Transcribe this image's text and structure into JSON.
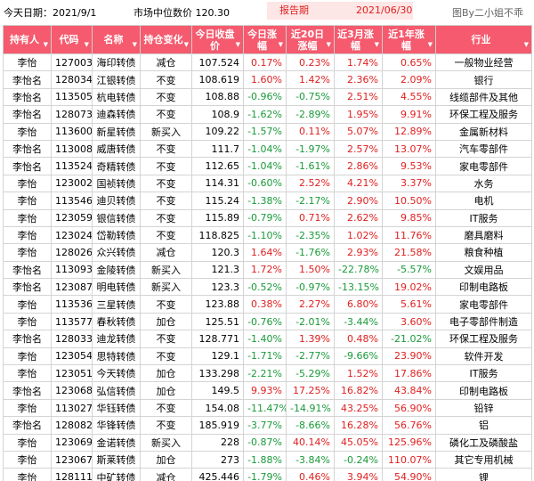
{
  "header": {
    "date_label": "今天日期：2021/9/1",
    "price_label": "市场中位数价  120.30",
    "period_label": "报告期",
    "period_value": "2021/06/30",
    "credit": "图By二小姐不乖"
  },
  "colors": {
    "header_bg": "#f55a6e",
    "up": "#e02020",
    "down": "#1a9a3a",
    "period_bg": "#fde6e6"
  },
  "columns": [
    "持有人",
    "代码",
    "名称",
    "持仓变化",
    "今日收盘价",
    "今日涨幅",
    "近20日涨幅",
    "近3月涨幅",
    "近1年涨幅",
    "行业"
  ],
  "rows": [
    [
      "李怡",
      "127003",
      "海印转债",
      "减仓",
      "107.524",
      "0.17%",
      "0.23%",
      "1.74%",
      "0.65%",
      "一般物业经营"
    ],
    [
      "李怡名",
      "128034",
      "江银转债",
      "不变",
      "108.619",
      "1.60%",
      "1.42%",
      "2.36%",
      "2.09%",
      "银行"
    ],
    [
      "李怡名",
      "113505",
      "杭电转债",
      "不变",
      "108.88",
      "-0.96%",
      "-0.75%",
      "2.51%",
      "4.55%",
      "线缆部件及其他"
    ],
    [
      "李怡名",
      "128073",
      "迪森转债",
      "不变",
      "108.9",
      "-1.62%",
      "-2.89%",
      "1.95%",
      "9.91%",
      "环保工程及服务"
    ],
    [
      "李怡",
      "113600",
      "新星转债",
      "新买入",
      "109.22",
      "-1.57%",
      "0.11%",
      "5.07%",
      "12.89%",
      "金属新材料"
    ],
    [
      "李怡名",
      "113008",
      "威唐转债",
      "不变",
      "111.7",
      "-1.04%",
      "-1.97%",
      "2.57%",
      "13.07%",
      "汽车零部件"
    ],
    [
      "李怡名",
      "113524",
      "奇精转债",
      "不变",
      "112.65",
      "-1.04%",
      "-1.61%",
      "2.86%",
      "9.53%",
      "家电零部件"
    ],
    [
      "李怡",
      "123002",
      "国祯转债",
      "不变",
      "114.31",
      "-0.60%",
      "2.52%",
      "4.21%",
      "3.37%",
      "水务"
    ],
    [
      "李怡",
      "113546",
      "迪贝转债",
      "不变",
      "115.24",
      "-1.38%",
      "-2.17%",
      "2.90%",
      "10.50%",
      "电机"
    ],
    [
      "李怡",
      "123059",
      "银信转债",
      "不变",
      "115.89",
      "-0.79%",
      "0.71%",
      "2.62%",
      "9.85%",
      "IT服务"
    ],
    [
      "李怡",
      "123024",
      "岱勒转债",
      "不变",
      "118.825",
      "-1.10%",
      "-2.35%",
      "1.02%",
      "11.76%",
      "磨具磨料"
    ],
    [
      "李怡",
      "128026",
      "众兴转债",
      "减仓",
      "120.3",
      "1.64%",
      "-1.76%",
      "2.93%",
      "21.58%",
      "粮食种植"
    ],
    [
      "李怡名",
      "113093",
      "金陵转债",
      "新买入",
      "121.3",
      "1.72%",
      "1.50%",
      "-22.78%",
      "-5.57%",
      "文娱用品"
    ],
    [
      "李怡名",
      "123087",
      "明电转债",
      "新买入",
      "123.3",
      "-0.52%",
      "-0.97%",
      "-13.15%",
      "19.02%",
      "印制电路板"
    ],
    [
      "李怡",
      "113536",
      "三星转债",
      "不变",
      "123.88",
      "0.38%",
      "2.27%",
      "6.80%",
      "5.61%",
      "家电零部件"
    ],
    [
      "李怡",
      "113577",
      "春秋转债",
      "加仓",
      "125.51",
      "-0.76%",
      "-2.01%",
      "-3.44%",
      "3.60%",
      "电子零部件制造"
    ],
    [
      "李怡名",
      "128033",
      "迪龙转债",
      "不变",
      "128.771",
      "-1.40%",
      "1.39%",
      "0.48%",
      "-21.02%",
      "环保工程及服务"
    ],
    [
      "李怡",
      "123054",
      "思特转债",
      "不变",
      "129.1",
      "-1.71%",
      "-2.77%",
      "-9.66%",
      "23.90%",
      "软件开发"
    ],
    [
      "李怡",
      "123051",
      "今天转债",
      "加仓",
      "133.298",
      "-2.21%",
      "-5.29%",
      "1.52%",
      "17.86%",
      "IT服务"
    ],
    [
      "李怡名",
      "123068",
      "弘信转债",
      "加仓",
      "149.5",
      "9.93%",
      "17.25%",
      "16.82%",
      "43.84%",
      "印制电路板"
    ],
    [
      "李怡",
      "113027",
      "华钰转债",
      "不变",
      "154.08",
      "-11.47%",
      "-14.91%",
      "43.25%",
      "56.90%",
      "铅锌"
    ],
    [
      "李怡名",
      "128082",
      "华锋转债",
      "不变",
      "185.919",
      "-3.77%",
      "-8.66%",
      "16.28%",
      "56.76%",
      "铝"
    ],
    [
      "李怡",
      "123069",
      "金诺转债",
      "新买入",
      "228",
      "-0.87%",
      "40.14%",
      "45.05%",
      "125.96%",
      "磷化工及磷酸盐"
    ],
    [
      "李怡",
      "123067",
      "斯莱转债",
      "加仓",
      "273",
      "-1.88%",
      "-3.84%",
      "-0.24%",
      "110.07%",
      "其它专用机械"
    ],
    [
      "李怡",
      "128111",
      "中矿转债",
      "减仓",
      "425.446",
      "-1.79%",
      "0.46%",
      "3.94%",
      "54.90%",
      "锂"
    ]
  ]
}
